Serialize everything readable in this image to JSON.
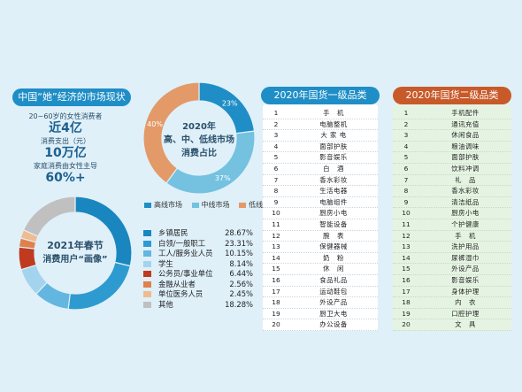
{
  "left_panel": {
    "title": "中国“她”经济的市场现状",
    "stats": [
      {
        "label": "20~60岁的女性消费者",
        "value": "近4亿"
      },
      {
        "label": "消费支出（元）",
        "value": "10万亿"
      },
      {
        "label": "家庭消费由女性主导",
        "value": "60%+"
      }
    ]
  },
  "colors": {
    "high": "#1f8ec7",
    "mid": "#74c1e0",
    "low": "#e39a68",
    "occupations": [
      "#1a86bf",
      "#2e9bd0",
      "#63b6df",
      "#a4d3ee",
      "#c03a1f",
      "#e0804d",
      "#efbb8f",
      "#c0c0c0"
    ]
  },
  "chart_data": [
    {
      "type": "pie",
      "title": "2020年 高、中、低线市场 消费占比",
      "title_lines": [
        "2020年",
        "高、中、低线市场",
        "消费占比"
      ],
      "labels": [
        "高线市场",
        "中线市场",
        "低线市场"
      ],
      "values": [
        23,
        37,
        40
      ],
      "value_labels": [
        "23%",
        "37%",
        "40%"
      ],
      "legend_position": "bottom"
    },
    {
      "type": "pie",
      "title": "2021年春节 消费用户“画像”",
      "title_lines": [
        "2021年春节",
        "消费用户“画像”"
      ],
      "labels": [
        "乡镇居民",
        "白领/一般职工",
        "工人/服务业人员",
        "学生",
        "公务员/事业单位",
        "金融从业者",
        "单位医务人员",
        "其他"
      ],
      "values": [
        28.67,
        23.31,
        10.15,
        8.14,
        6.44,
        2.56,
        2.45,
        18.28
      ],
      "value_labels": [
        "28.67%",
        "23.31%",
        "10.15%",
        "8.14%",
        "6.44%",
        "2.56%",
        "2.45%",
        "18.28%"
      ],
      "legend_position": "right"
    },
    {
      "type": "table",
      "title": "2020年国货一级品类Top20",
      "rows": [
        [
          "1",
          "手　机"
        ],
        [
          "2",
          "电脑整机"
        ],
        [
          "3",
          "大 家 电"
        ],
        [
          "4",
          "面部护肤"
        ],
        [
          "5",
          "影音娱乐"
        ],
        [
          "6",
          "白　酒"
        ],
        [
          "7",
          "香水彩妆"
        ],
        [
          "8",
          "生活电器"
        ],
        [
          "9",
          "电脑组件"
        ],
        [
          "10",
          "厨房小电"
        ],
        [
          "11",
          "智能设备"
        ],
        [
          "12",
          "腕　表"
        ],
        [
          "13",
          "保健器械"
        ],
        [
          "14",
          "奶　粉"
        ],
        [
          "15",
          "休　闲"
        ],
        [
          "16",
          "食品礼品"
        ],
        [
          "17",
          "运动鞋包"
        ],
        [
          "18",
          "外设产品"
        ],
        [
          "19",
          "厨卫大电"
        ],
        [
          "20",
          "办公设备"
        ]
      ]
    },
    {
      "type": "table",
      "title": "2020年国货二级品类Top20",
      "rows": [
        [
          "1",
          "手机配件"
        ],
        [
          "2",
          "通讯充值"
        ],
        [
          "3",
          "休闲食品"
        ],
        [
          "4",
          "粮油调味"
        ],
        [
          "5",
          "面部护肤"
        ],
        [
          "6",
          "饮料冲调"
        ],
        [
          "7",
          "礼　品"
        ],
        [
          "8",
          "香水彩妆"
        ],
        [
          "9",
          "清洁纸品"
        ],
        [
          "10",
          "厨房小电"
        ],
        [
          "11",
          "个护健康"
        ],
        [
          "12",
          "手　机"
        ],
        [
          "13",
          "洗护用品"
        ],
        [
          "14",
          "尿裤湿巾"
        ],
        [
          "15",
          "外设产品"
        ],
        [
          "16",
          "影音娱乐"
        ],
        [
          "17",
          "身体护理"
        ],
        [
          "18",
          "内　衣"
        ],
        [
          "19",
          "口腔护理"
        ],
        [
          "20",
          "文　具"
        ]
      ]
    }
  ]
}
